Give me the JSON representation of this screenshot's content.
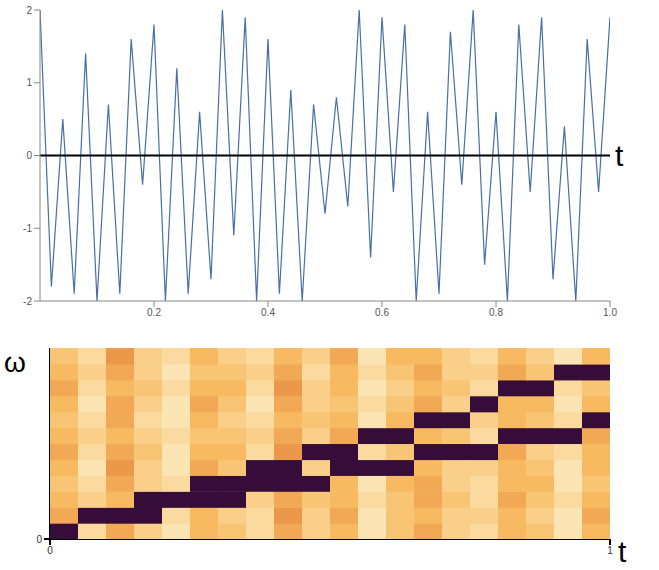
{
  "chart_data": [
    {
      "type": "line",
      "xlabel": "t",
      "color": "#4a6fa5",
      "x": [
        0,
        0.02,
        0.04,
        0.06,
        0.08,
        0.1,
        0.12,
        0.14,
        0.16,
        0.18,
        0.2,
        0.22,
        0.24,
        0.26,
        0.28,
        0.3,
        0.32,
        0.34,
        0.36,
        0.38,
        0.4,
        0.42,
        0.44,
        0.46,
        0.48,
        0.5,
        0.52,
        0.54,
        0.56,
        0.58,
        0.6,
        0.62,
        0.64,
        0.66,
        0.68,
        0.7,
        0.72,
        0.74,
        0.76,
        0.78,
        0.8,
        0.82,
        0.84,
        0.86,
        0.88,
        0.9,
        0.92,
        0.94,
        0.96,
        0.98,
        1
      ],
      "values": [
        2,
        -1.8,
        0.5,
        -1.9,
        1.4,
        -2,
        0.7,
        -1.9,
        1.6,
        -0.4,
        1.8,
        -2,
        1.2,
        -1.9,
        0.6,
        -1.7,
        2,
        -1.1,
        1.9,
        -2,
        1.6,
        -1.9,
        0.9,
        -2,
        0.7,
        -0.8,
        0.8,
        -0.7,
        2,
        -1.4,
        1.9,
        -0.5,
        1.8,
        -2,
        0.6,
        -1.9,
        1.7,
        -0.4,
        2,
        -1.5,
        0.6,
        -2,
        1.8,
        -0.5,
        1.9,
        -1.7,
        0.4,
        -2,
        1.6,
        -0.5,
        1.9
      ],
      "xlim": [
        0,
        1
      ],
      "ylim": [
        -2,
        2
      ],
      "xticks": [
        0.2,
        0.4,
        0.6,
        0.8,
        {
          "value": 1,
          "label": "1.0"
        }
      ],
      "yticks": [
        -2,
        -1,
        0,
        1,
        2
      ]
    },
    {
      "type": "heatmap",
      "xlabel": "t",
      "ylabel": "ω",
      "x": [
        0.025,
        0.075,
        0.125,
        0.175,
        0.225,
        0.275,
        0.325,
        0.375,
        0.425,
        0.475,
        0.525,
        0.575,
        0.625,
        0.675,
        0.725,
        0.775,
        0.825,
        0.875,
        0.925,
        0.975
      ],
      "y": [
        0.042,
        0.125,
        0.208,
        0.292,
        0.375,
        0.458,
        0.542,
        0.625,
        0.708,
        0.792,
        0.875,
        0.958
      ],
      "cells": [
        [
          0.95,
          0.15,
          0.35,
          0.2,
          0.1,
          0.3,
          0.25,
          0.15,
          0.35,
          0.2,
          0.3,
          0.1,
          0.25,
          0.35,
          0.2,
          0.15,
          0.3,
          0.25,
          0.1,
          0.3
        ],
        [
          0.35,
          0.95,
          0.95,
          0.95,
          0.15,
          0.3,
          0.2,
          0.15,
          0.4,
          0.2,
          0.35,
          0.1,
          0.25,
          0.3,
          0.2,
          0.2,
          0.3,
          0.2,
          0.1,
          0.35
        ],
        [
          0.3,
          0.2,
          0.3,
          0.95,
          0.95,
          0.95,
          0.95,
          0.2,
          0.35,
          0.25,
          0.3,
          0.15,
          0.25,
          0.35,
          0.25,
          0.15,
          0.35,
          0.25,
          0.15,
          0.3
        ],
        [
          0.25,
          0.15,
          0.35,
          0.2,
          0.15,
          0.95,
          0.95,
          0.95,
          0.95,
          0.95,
          0.3,
          0.1,
          0.3,
          0.35,
          0.2,
          0.15,
          0.3,
          0.3,
          0.1,
          0.25
        ],
        [
          0.3,
          0.1,
          0.4,
          0.2,
          0.1,
          0.35,
          0.25,
          0.95,
          0.95,
          0.2,
          0.95,
          0.95,
          0.95,
          0.3,
          0.2,
          0.2,
          0.3,
          0.25,
          0.1,
          0.3
        ],
        [
          0.35,
          0.15,
          0.35,
          0.25,
          0.1,
          0.3,
          0.3,
          0.15,
          0.4,
          0.95,
          0.95,
          0.15,
          0.25,
          0.95,
          0.95,
          0.95,
          0.35,
          0.2,
          0.15,
          0.3
        ],
        [
          0.3,
          0.2,
          0.3,
          0.2,
          0.15,
          0.25,
          0.25,
          0.2,
          0.35,
          0.2,
          0.35,
          0.95,
          0.95,
          0.3,
          0.25,
          0.15,
          0.95,
          0.95,
          0.95,
          0.35
        ],
        [
          0.25,
          0.15,
          0.35,
          0.15,
          0.1,
          0.3,
          0.2,
          0.15,
          0.3,
          0.25,
          0.3,
          0.1,
          0.3,
          0.95,
          0.95,
          0.2,
          0.3,
          0.25,
          0.15,
          0.95
        ],
        [
          0.3,
          0.1,
          0.35,
          0.2,
          0.1,
          0.35,
          0.25,
          0.1,
          0.35,
          0.2,
          0.25,
          0.15,
          0.25,
          0.35,
          0.2,
          0.95,
          0.3,
          0.3,
          0.1,
          0.3
        ],
        [
          0.35,
          0.15,
          0.3,
          0.25,
          0.15,
          0.3,
          0.3,
          0.15,
          0.4,
          0.2,
          0.3,
          0.1,
          0.2,
          0.3,
          0.25,
          0.15,
          0.95,
          0.95,
          0.15,
          0.25
        ],
        [
          0.3,
          0.2,
          0.35,
          0.2,
          0.1,
          0.25,
          0.25,
          0.2,
          0.35,
          0.15,
          0.3,
          0.15,
          0.25,
          0.35,
          0.2,
          0.2,
          0.35,
          0.25,
          0.95,
          0.95
        ],
        [
          0.25,
          0.15,
          0.4,
          0.2,
          0.15,
          0.3,
          0.2,
          0.15,
          0.3,
          0.2,
          0.35,
          0.1,
          0.3,
          0.3,
          0.2,
          0.15,
          0.3,
          0.2,
          0.1,
          0.3
        ]
      ],
      "zlim": [
        0,
        1
      ],
      "xlim": [
        0,
        1
      ],
      "ylim": [
        0,
        1
      ],
      "xticks": [
        0,
        1
      ],
      "yticks": [
        0
      ]
    }
  ]
}
